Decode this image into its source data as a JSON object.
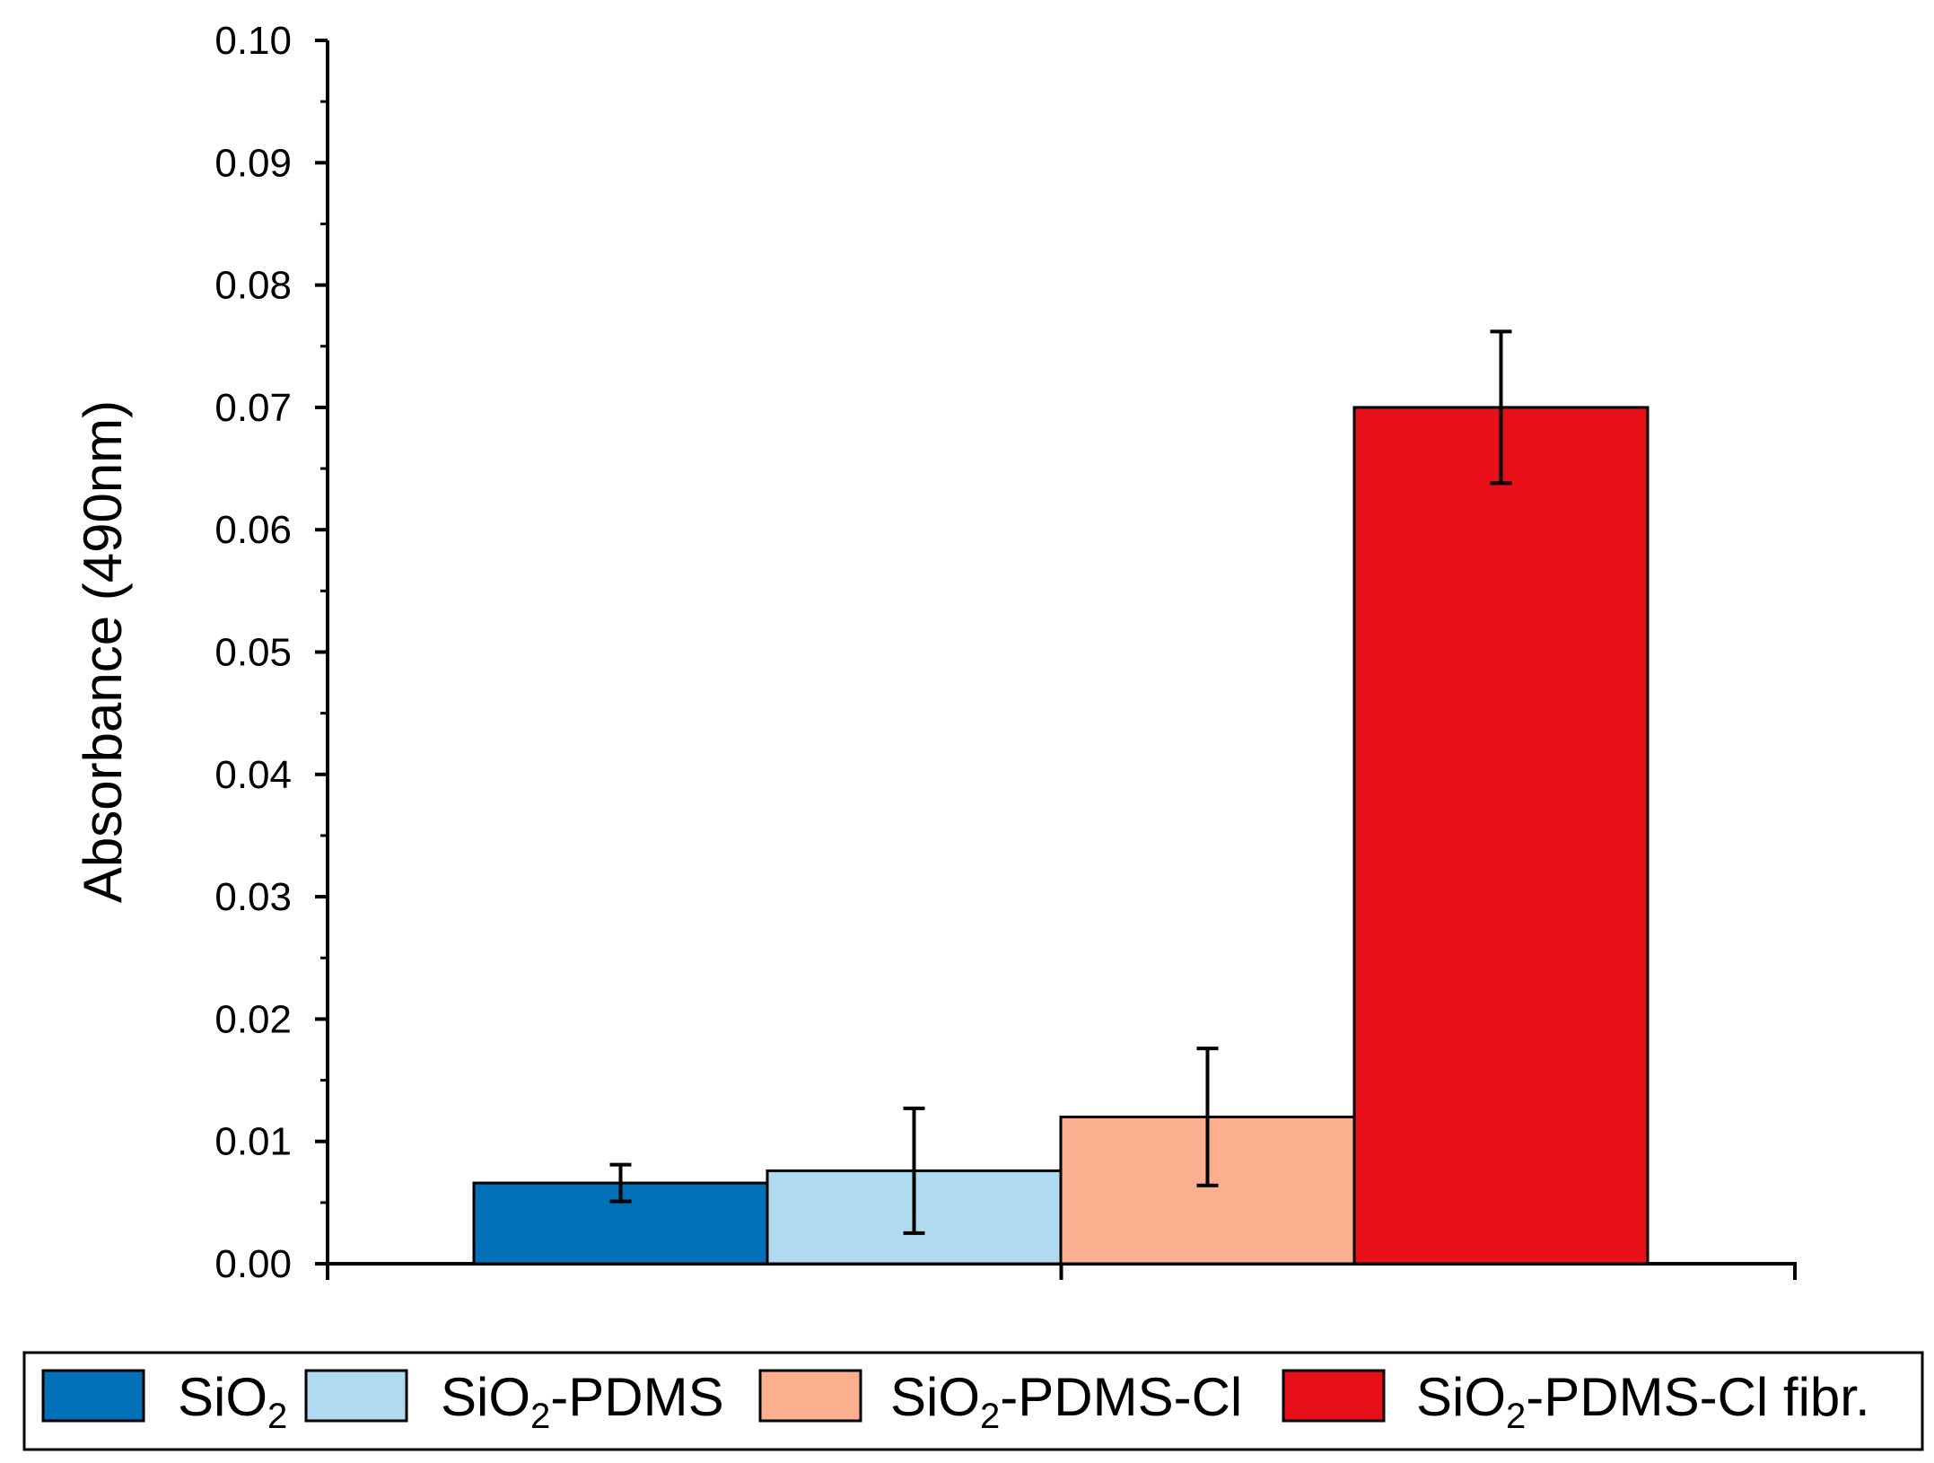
{
  "chart_data": {
    "type": "bar",
    "title": "",
    "xlabel": "",
    "ylabel": "Absorbance (490nm)",
    "ylim": [
      0.0,
      0.1
    ],
    "yticks": [
      "0.00",
      "0.01",
      "0.02",
      "0.03",
      "0.04",
      "0.05",
      "0.06",
      "0.07",
      "0.08",
      "0.09",
      "0.10"
    ],
    "legend_position": "bottom",
    "series": [
      {
        "name": "SiO2",
        "label_main": "SiO",
        "label_sub": "2",
        "label_suffix": "",
        "value": 0.0066,
        "err_low": 0.0051,
        "err_high": 0.0081,
        "color": "#0070B8"
      },
      {
        "name": "SiO2-PDMS",
        "label_main": "SiO",
        "label_sub": "2",
        "label_suffix": "-PDMS",
        "value": 0.0076,
        "err_low": 0.0025,
        "err_high": 0.0127,
        "color": "#B0DAF0"
      },
      {
        "name": "SiO2-PDMS-Cl",
        "label_main": "SiO",
        "label_sub": "2",
        "label_suffix": "-PDMS-Cl",
        "value": 0.012,
        "err_low": 0.0064,
        "err_high": 0.0176,
        "color": "#FCAF8F"
      },
      {
        "name": "SiO2-PDMS-Cl fibr.",
        "label_main": "SiO",
        "label_sub": "2",
        "label_suffix": "-PDMS-Cl fibr.",
        "value": 0.07,
        "err_low": 0.0638,
        "err_high": 0.0762,
        "color": "#E81018"
      }
    ]
  }
}
